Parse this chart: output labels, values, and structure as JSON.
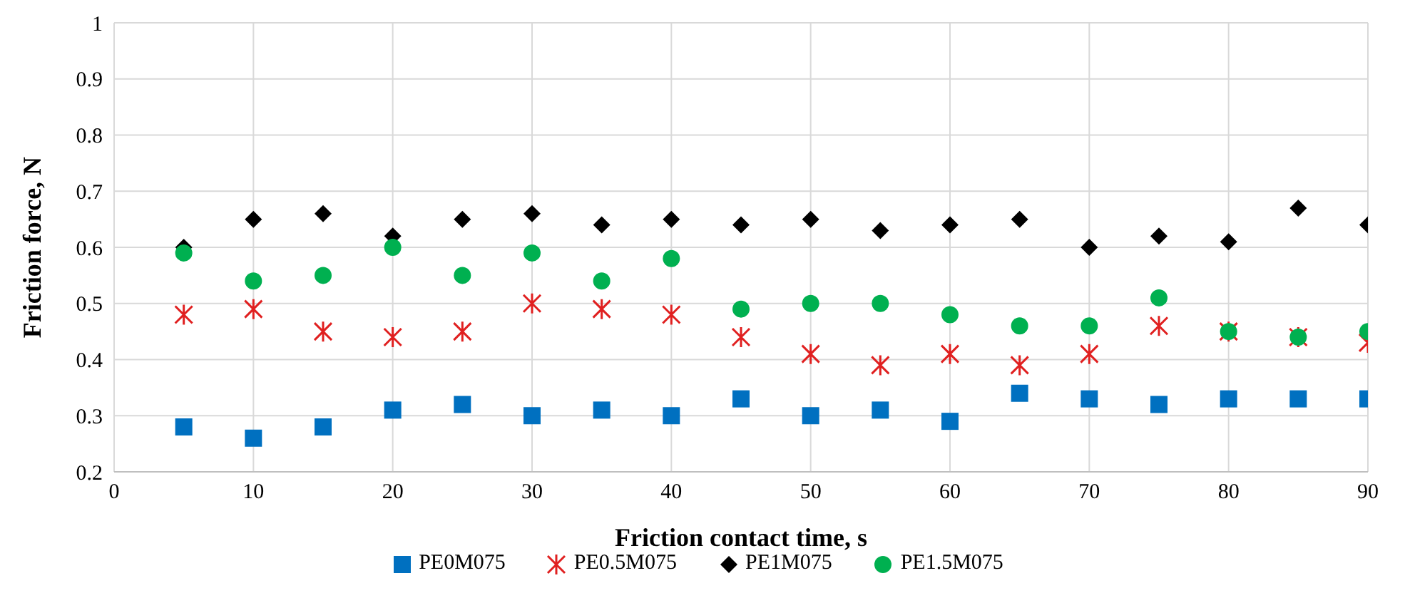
{
  "chart_data": {
    "type": "scatter",
    "xlabel": "Friction contact time, s",
    "ylabel": "Friction force, N",
    "x": [
      5,
      10,
      15,
      20,
      25,
      30,
      35,
      40,
      45,
      50,
      55,
      60,
      65,
      70,
      75,
      80,
      85,
      90
    ],
    "series": [
      {
        "name": "PE0M075",
        "color": "#0070c0",
        "marker": "square",
        "values": [
          0.28,
          0.26,
          0.28,
          0.31,
          0.32,
          0.3,
          0.31,
          0.3,
          0.33,
          0.3,
          0.31,
          0.29,
          0.34,
          0.33,
          0.32,
          0.33,
          0.33,
          0.33
        ]
      },
      {
        "name": "PE0.5M075",
        "color": "#e02020",
        "marker": "cross",
        "values": [
          0.48,
          0.49,
          0.45,
          0.44,
          0.45,
          0.5,
          0.49,
          0.48,
          0.44,
          0.41,
          0.39,
          0.41,
          0.39,
          0.41,
          0.46,
          0.45,
          0.44,
          0.43
        ]
      },
      {
        "name": "PE1M075",
        "color": "#000000",
        "marker": "diamond",
        "values": [
          0.6,
          0.65,
          0.66,
          0.62,
          0.65,
          0.66,
          0.64,
          0.65,
          0.64,
          0.65,
          0.63,
          0.64,
          0.65,
          0.6,
          0.62,
          0.61,
          0.67,
          0.64
        ]
      },
      {
        "name": "PE1.5M075",
        "color": "#00b050",
        "marker": "circle",
        "values": [
          0.59,
          0.54,
          0.55,
          0.6,
          0.55,
          0.59,
          0.54,
          0.58,
          0.49,
          0.5,
          0.5,
          0.48,
          0.46,
          0.46,
          0.51,
          0.45,
          0.44,
          0.45
        ]
      }
    ],
    "xlim": [
      0,
      90
    ],
    "xticks": [
      0,
      10,
      20,
      30,
      40,
      50,
      60,
      70,
      80,
      90
    ],
    "ylim": [
      0.2,
      1
    ],
    "yticks": [
      0.2,
      0.3,
      0.4,
      0.5,
      0.6,
      0.7,
      0.8,
      0.9,
      1
    ],
    "grid": true,
    "legend": "bottom"
  }
}
